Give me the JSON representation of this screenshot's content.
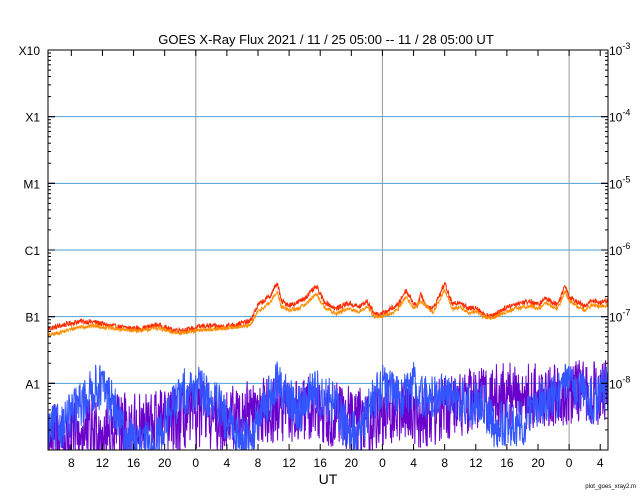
{
  "chart_data": {
    "type": "line",
    "title": "GOES X-Ray Flux   2021 / 11 / 25   05:00 -- 11 / 28   05:00   UT",
    "xlabel": "UT",
    "x_range_hours": [
      0,
      72
    ],
    "x_ticks": [
      {
        "h": 3,
        "label": "8"
      },
      {
        "h": 7,
        "label": "12"
      },
      {
        "h": 11,
        "label": "16"
      },
      {
        "h": 15,
        "label": "20"
      },
      {
        "h": 19,
        "label": "0"
      },
      {
        "h": 23,
        "label": "4"
      },
      {
        "h": 27,
        "label": "8"
      },
      {
        "h": 31,
        "label": "12"
      },
      {
        "h": 35,
        "label": "16"
      },
      {
        "h": 39,
        "label": "20"
      },
      {
        "h": 43,
        "label": "0"
      },
      {
        "h": 47,
        "label": "4"
      },
      {
        "h": 51,
        "label": "8"
      },
      {
        "h": 55,
        "label": "12"
      },
      {
        "h": 59,
        "label": "16"
      },
      {
        "h": 63,
        "label": "20"
      },
      {
        "h": 67,
        "label": "0"
      },
      {
        "h": 71,
        "label": "4"
      }
    ],
    "day_boundaries_hours": [
      19,
      43,
      67
    ],
    "y_scale": "log",
    "ylim": [
      1e-09,
      0.001
    ],
    "left_labels": [
      {
        "v": 0.001,
        "label": "X10"
      },
      {
        "v": 0.0001,
        "label": "X1"
      },
      {
        "v": 1e-05,
        "label": "M1"
      },
      {
        "v": 1e-06,
        "label": "C1"
      },
      {
        "v": 1e-07,
        "label": "B1"
      },
      {
        "v": 1e-08,
        "label": "A1"
      }
    ],
    "right_labels": [
      {
        "v": 0.001,
        "mant": "10",
        "exp": "-3"
      },
      {
        "v": 0.0001,
        "mant": "10",
        "exp": "-4"
      },
      {
        "v": 1e-05,
        "mant": "10",
        "exp": "-5"
      },
      {
        "v": 1e-06,
        "mant": "10",
        "exp": "-6"
      },
      {
        "v": 1e-07,
        "mant": "10",
        "exp": "-7"
      },
      {
        "v": 1e-08,
        "mant": "10",
        "exp": "-8"
      }
    ],
    "gridlines": [
      0.0001,
      1e-05,
      1e-06,
      1e-07,
      1e-08
    ],
    "series": [
      {
        "color": "#ff2a00",
        "noise": 0.04,
        "points": [
          [
            0,
            6.5e-08
          ],
          [
            2,
            7.5e-08
          ],
          [
            4,
            8.5e-08
          ],
          [
            6,
            8.3e-08
          ],
          [
            8,
            7.3e-08
          ],
          [
            10,
            6.8e-08
          ],
          [
            12,
            6.6e-08
          ],
          [
            14,
            7.6e-08
          ],
          [
            16,
            6.3e-08
          ],
          [
            18,
            6.4e-08
          ],
          [
            20,
            7.3e-08
          ],
          [
            22,
            7.1e-08
          ],
          [
            24,
            7.6e-08
          ],
          [
            26,
            8.5e-08
          ],
          [
            27,
            1.5e-07
          ],
          [
            28.5,
            2e-07
          ],
          [
            29.5,
            3.2e-07
          ],
          [
            30,
            1.7e-07
          ],
          [
            31,
            1.5e-07
          ],
          [
            32,
            1.6e-07
          ],
          [
            33,
            1.9e-07
          ],
          [
            34.5,
            2.8e-07
          ],
          [
            35.5,
            1.7e-07
          ],
          [
            37,
            1.3e-07
          ],
          [
            38.5,
            1.6e-07
          ],
          [
            40,
            1.4e-07
          ],
          [
            41,
            1.7e-07
          ],
          [
            42,
            1.1e-07
          ],
          [
            43,
            1.1e-07
          ],
          [
            44,
            1.3e-07
          ],
          [
            45,
            1.5e-07
          ],
          [
            46,
            2.5e-07
          ],
          [
            47,
            1.6e-07
          ],
          [
            47.5,
            1.5e-07
          ],
          [
            48,
            2.2e-07
          ],
          [
            48.5,
            1.5e-07
          ],
          [
            49.5,
            1.3e-07
          ],
          [
            50.5,
            2.3e-07
          ],
          [
            51,
            3.2e-07
          ],
          [
            52,
            1.5e-07
          ],
          [
            53,
            1.7e-07
          ],
          [
            54,
            1.3e-07
          ],
          [
            55,
            1.4e-07
          ],
          [
            56,
            1.1e-07
          ],
          [
            57,
            1e-07
          ],
          [
            58,
            1.2e-07
          ],
          [
            59,
            1.4e-07
          ],
          [
            60.5,
            1.6e-07
          ],
          [
            62,
            1.7e-07
          ],
          [
            63,
            1.5e-07
          ],
          [
            64,
            1.9e-07
          ],
          [
            65.5,
            1.5e-07
          ],
          [
            66.5,
            3e-07
          ],
          [
            67,
            2e-07
          ],
          [
            68,
            1.7e-07
          ],
          [
            69,
            1.4e-07
          ],
          [
            70,
            1.8e-07
          ],
          [
            71,
            1.6e-07
          ],
          [
            72,
            1.8e-07
          ]
        ]
      },
      {
        "color": "#ff8c00",
        "noise": 0.03,
        "points": [
          [
            0,
            5.2e-08
          ],
          [
            2,
            6e-08
          ],
          [
            4,
            7e-08
          ],
          [
            6,
            7.3e-08
          ],
          [
            8,
            6.7e-08
          ],
          [
            10,
            6.3e-08
          ],
          [
            12,
            6.2e-08
          ],
          [
            14,
            6.8e-08
          ],
          [
            16,
            5.8e-08
          ],
          [
            18,
            5.8e-08
          ],
          [
            20,
            6.4e-08
          ],
          [
            22,
            6.5e-08
          ],
          [
            24,
            7e-08
          ],
          [
            26,
            7.3e-08
          ],
          [
            27,
            1.2e-07
          ],
          [
            28.5,
            1.6e-07
          ],
          [
            29.5,
            2.4e-07
          ],
          [
            30,
            1.4e-07
          ],
          [
            31,
            1.25e-07
          ],
          [
            32,
            1.3e-07
          ],
          [
            33,
            1.5e-07
          ],
          [
            34.5,
            2.2e-07
          ],
          [
            35.5,
            1.4e-07
          ],
          [
            37,
            1.1e-07
          ],
          [
            38.5,
            1.3e-07
          ],
          [
            40,
            1.2e-07
          ],
          [
            41,
            1.4e-07
          ],
          [
            42,
            1e-07
          ],
          [
            43,
            1e-07
          ],
          [
            44,
            1.1e-07
          ],
          [
            45,
            1.3e-07
          ],
          [
            46,
            2e-07
          ],
          [
            47,
            1.35e-07
          ],
          [
            48,
            1.7e-07
          ],
          [
            49.5,
            1.15e-07
          ],
          [
            51,
            2.5e-07
          ],
          [
            52,
            1.3e-07
          ],
          [
            53,
            1.4e-07
          ],
          [
            54,
            1.15e-07
          ],
          [
            55,
            1.2e-07
          ],
          [
            56,
            1e-07
          ],
          [
            57,
            9.5e-08
          ],
          [
            58,
            1.05e-07
          ],
          [
            59,
            1.2e-07
          ],
          [
            60.5,
            1.35e-07
          ],
          [
            62,
            1.45e-07
          ],
          [
            63,
            1.3e-07
          ],
          [
            64,
            1.6e-07
          ],
          [
            65.5,
            1.3e-07
          ],
          [
            66.5,
            2.4e-07
          ],
          [
            67,
            1.7e-07
          ],
          [
            68,
            1.45e-07
          ],
          [
            69,
            1.25e-07
          ],
          [
            70,
            1.5e-07
          ],
          [
            71,
            1.4e-07
          ],
          [
            72,
            1.5e-07
          ]
        ]
      },
      {
        "color": "#6a00cc",
        "noise": 0.5,
        "points": [
          [
            0,
            1.8e-09
          ],
          [
            2,
            1.5e-09
          ],
          [
            4,
            1.7e-09
          ],
          [
            6,
            2e-09
          ],
          [
            8,
            1.9e-09
          ],
          [
            10,
            2.5e-09
          ],
          [
            12,
            2.2e-09
          ],
          [
            14,
            2.8e-09
          ],
          [
            16,
            2.6e-09
          ],
          [
            18,
            3e-09
          ],
          [
            20,
            3.5e-09
          ],
          [
            22,
            2.8e-09
          ],
          [
            24,
            3.2e-09
          ],
          [
            26,
            3.6e-09
          ],
          [
            28,
            4e-09
          ],
          [
            30,
            3.8e-09
          ],
          [
            32,
            3.5e-09
          ],
          [
            34,
            4.2e-09
          ],
          [
            36,
            3.6e-09
          ],
          [
            38,
            3.2e-09
          ],
          [
            40,
            2.8e-09
          ],
          [
            42,
            3e-09
          ],
          [
            44,
            3.6e-09
          ],
          [
            46,
            4.5e-09
          ],
          [
            48,
            3.2e-09
          ],
          [
            50,
            3.8e-09
          ],
          [
            52,
            4.6e-09
          ],
          [
            54,
            5.5e-09
          ],
          [
            56,
            6e-09
          ],
          [
            58,
            6.3e-09
          ],
          [
            60,
            6.8e-09
          ],
          [
            62,
            6.2e-09
          ],
          [
            64,
            6.5e-09
          ],
          [
            66,
            7e-09
          ],
          [
            68,
            7.5e-09
          ],
          [
            70,
            7.2e-09
          ],
          [
            72,
            7e-09
          ]
        ]
      },
      {
        "color": "#3355ff",
        "noise": 0.35,
        "points": [
          [
            0,
            2e-09
          ],
          [
            2,
            2.5e-09
          ],
          [
            3.5,
            4e-09
          ],
          [
            5,
            6e-09
          ],
          [
            6,
            8.5e-09
          ],
          [
            7,
            9e-09
          ],
          [
            8,
            6e-09
          ],
          [
            9,
            3e-09
          ],
          [
            10,
            1.5e-09
          ],
          [
            12,
            1.2e-09
          ],
          [
            14,
            1.3e-09
          ],
          [
            15,
            2.5e-09
          ],
          [
            16,
            4.5e-09
          ],
          [
            17.5,
            7.5e-09
          ],
          [
            19,
            8.5e-09
          ],
          [
            20.5,
            6.5e-09
          ],
          [
            22,
            4.5e-09
          ],
          [
            23,
            2.5e-09
          ],
          [
            25,
            1.5e-09
          ],
          [
            26.5,
            1.8e-09
          ],
          [
            28,
            5e-09
          ],
          [
            29.5,
            1e-08
          ],
          [
            31,
            5.5e-09
          ],
          [
            32.5,
            4e-09
          ],
          [
            34,
            8e-09
          ],
          [
            35,
            6.5e-09
          ],
          [
            36.5,
            5.5e-09
          ],
          [
            38,
            2.5e-09
          ],
          [
            40,
            1.5e-09
          ],
          [
            41,
            3.5e-09
          ],
          [
            42,
            6.5e-09
          ],
          [
            43,
            9.5e-09
          ],
          [
            44,
            7e-09
          ],
          [
            46,
            6.5e-09
          ],
          [
            47,
            1e-08
          ],
          [
            48,
            6.5e-09
          ],
          [
            49,
            5.5e-09
          ],
          [
            50.5,
            7.5e-09
          ],
          [
            52,
            6.5e-09
          ],
          [
            54,
            4.5e-09
          ],
          [
            56,
            5e-09
          ],
          [
            57.5,
            2.2e-09
          ],
          [
            59,
            2.5e-09
          ],
          [
            61,
            2.5e-09
          ],
          [
            62.5,
            4e-09
          ],
          [
            64,
            6e-09
          ],
          [
            66,
            7e-09
          ],
          [
            67,
            1.1e-08
          ],
          [
            68.5,
            7.5e-09
          ],
          [
            70,
            5e-09
          ],
          [
            71,
            7e-09
          ],
          [
            72,
            8.5e-09
          ]
        ]
      }
    ]
  },
  "credit": "plot_goes_xray2.m"
}
